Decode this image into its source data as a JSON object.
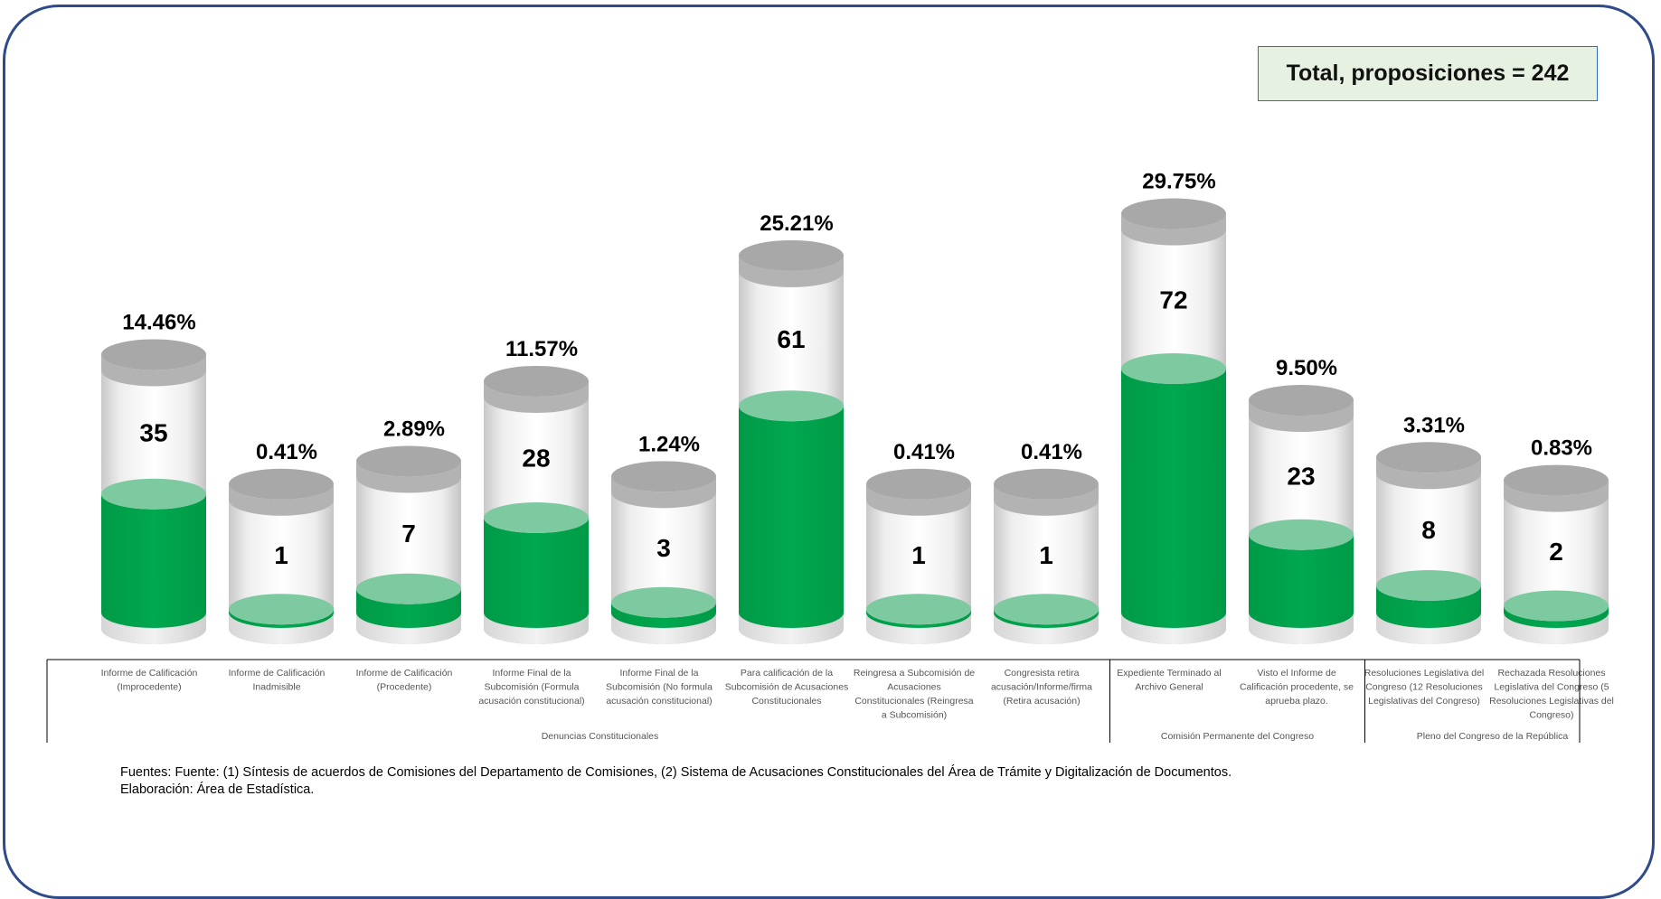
{
  "total_label": "Total, proposiciones = 242",
  "footer": {
    "line1": "Fuentes: Fuente: (1) Síntesis de acuerdos de Comisiones del Departamento de Comisiones, (2) Sistema de Acusaciones Constitucionales del Área de Trámite y Digitalización de Documentos.",
    "line2": "Elaboración: Área de Estadística."
  },
  "colors": {
    "fill": "#00A84F",
    "fill_top": "#7DC9A0",
    "cap": "#A8A8A8",
    "frame": "#2F4A8A"
  },
  "chart_data": {
    "type": "bar",
    "total": 242,
    "categories": [
      [
        "Informe de Calificación",
        "(Improcedente)"
      ],
      [
        "Informe de Calificación",
        "Inadmisible"
      ],
      [
        "Informe de Calificación",
        "(Procedente)"
      ],
      [
        "Informe Final de la",
        "Subcomisión (Formula",
        "acusación constitucional)"
      ],
      [
        "Informe Final de la",
        "Subcomisión (No formula",
        "acusación constitucional)"
      ],
      [
        "Para calificación de la",
        "Subcomisión de Acusaciones",
        "Constitucionales"
      ],
      [
        "Reingresa a Subcomisión de",
        "Acusaciones",
        "Constitucionales (Reingresa",
        "a Subcomisión)"
      ],
      [
        "Congresista retira",
        "acusación/Informe/firma",
        "(Retira acusación)"
      ],
      [
        "Expediente Terminado al",
        "Archivo General"
      ],
      [
        "Visto el Informe de",
        "Calificación procedente, se",
        "aprueba plazo."
      ],
      [
        "Resoluciones Legislativa del",
        "Congreso (12 Resoluciones",
        "Legislativas del Congreso)"
      ],
      [
        "Rechazada Resoluciones",
        "Legislativa del Congreso (5",
        "Resoluciones Legislativas del",
        "Congreso)"
      ]
    ],
    "values": [
      35,
      1,
      7,
      28,
      3,
      61,
      1,
      1,
      72,
      23,
      8,
      2
    ],
    "percent_labels": [
      "14.46%",
      "0.41%",
      "2.89%",
      "11.57%",
      "1.24%",
      "25.21%",
      "0.41%",
      "0.41%",
      "29.75%",
      "9.50%",
      "3.31%",
      "0.83%"
    ],
    "value_labels": [
      "35",
      "1",
      "7",
      "28",
      "3",
      "61",
      "1",
      "1",
      "72",
      "23",
      "8",
      "2"
    ],
    "groups": [
      {
        "label": "Denuncias Constitucionales",
        "start": 0,
        "end": 7
      },
      {
        "label": "Comisión Permanente del Congreso",
        "start": 8,
        "end": 9
      },
      {
        "label": "Pleno del Congreso de la República",
        "start": 10,
        "end": 11
      }
    ]
  }
}
